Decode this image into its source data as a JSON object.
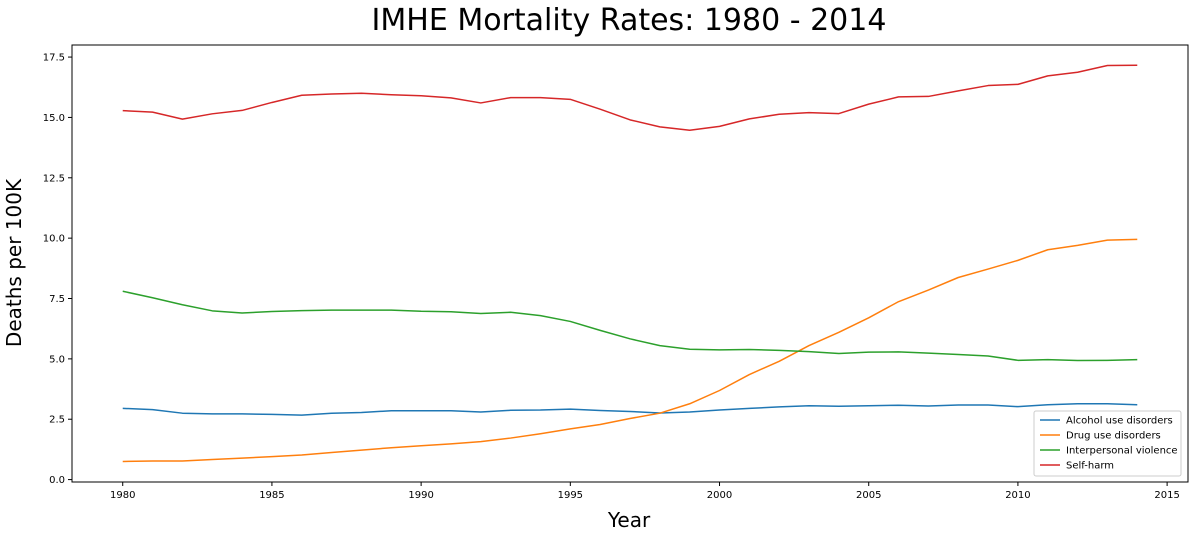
{
  "chart_data": {
    "type": "line",
    "title": "IMHE Mortality Rates: 1980 - 2014",
    "xlabel": "Year",
    "ylabel": "Deaths per 100K",
    "xlim": [
      1978.3,
      2015.7
    ],
    "ylim": [
      -0.1,
      18.0
    ],
    "x_ticks": [
      1980,
      1985,
      1990,
      1995,
      2000,
      2005,
      2010,
      2015
    ],
    "x_tick_labels": [
      "1980",
      "1985",
      "1990",
      "1995",
      "2000",
      "2005",
      "2010",
      "2015"
    ],
    "y_ticks": [
      0.0,
      2.5,
      5.0,
      7.5,
      10.0,
      12.5,
      15.0,
      17.5
    ],
    "y_tick_labels": [
      "0.0",
      "2.5",
      "5.0",
      "7.5",
      "10.0",
      "12.5",
      "15.0",
      "17.5"
    ],
    "grid": false,
    "legend_position": "lower-right",
    "x": [
      1980,
      1981,
      1982,
      1983,
      1984,
      1985,
      1986,
      1987,
      1988,
      1989,
      1990,
      1991,
      1992,
      1993,
      1994,
      1995,
      1996,
      1997,
      1998,
      1999,
      2000,
      2001,
      2002,
      2003,
      2004,
      2005,
      2006,
      2007,
      2008,
      2009,
      2010,
      2011,
      2012,
      2013,
      2014
    ],
    "series": [
      {
        "name": "Alcohol use disorders",
        "color": "#1f77b4",
        "values": [
          2.95,
          2.9,
          2.75,
          2.72,
          2.72,
          2.7,
          2.67,
          2.75,
          2.78,
          2.85,
          2.85,
          2.85,
          2.8,
          2.87,
          2.88,
          2.92,
          2.86,
          2.82,
          2.76,
          2.8,
          2.88,
          2.95,
          3.01,
          3.06,
          3.04,
          3.06,
          3.08,
          3.05,
          3.09,
          3.09,
          3.02,
          3.1,
          3.14,
          3.14,
          3.1
        ]
      },
      {
        "name": "Drug use disorders",
        "color": "#ff7f0e",
        "values": [
          0.75,
          0.77,
          0.77,
          0.83,
          0.89,
          0.95,
          1.02,
          1.12,
          1.22,
          1.32,
          1.4,
          1.48,
          1.57,
          1.72,
          1.9,
          2.1,
          2.28,
          2.53,
          2.75,
          3.14,
          3.69,
          4.35,
          4.9,
          5.55,
          6.1,
          6.7,
          7.37,
          7.85,
          8.37,
          8.72,
          9.08,
          9.52,
          9.7,
          9.92,
          9.95
        ]
      },
      {
        "name": "Interpersonal violence",
        "color": "#2ca02c",
        "values": [
          7.8,
          7.53,
          7.24,
          6.99,
          6.9,
          6.96,
          7.0,
          7.02,
          7.02,
          7.02,
          6.97,
          6.95,
          6.88,
          6.93,
          6.79,
          6.55,
          6.18,
          5.83,
          5.55,
          5.4,
          5.37,
          5.39,
          5.35,
          5.3,
          5.22,
          5.28,
          5.29,
          5.24,
          5.18,
          5.12,
          4.94,
          4.97,
          4.93,
          4.94,
          4.97
        ]
      },
      {
        "name": "Self-harm",
        "color": "#d62728",
        "values": [
          15.28,
          15.22,
          14.93,
          15.15,
          15.29,
          15.62,
          15.92,
          15.97,
          16.0,
          15.94,
          15.9,
          15.81,
          15.6,
          15.82,
          15.82,
          15.75,
          15.34,
          14.9,
          14.61,
          14.47,
          14.63,
          14.94,
          15.13,
          15.2,
          15.16,
          15.55,
          15.85,
          15.87,
          16.1,
          16.32,
          16.37,
          16.72,
          16.87,
          17.15,
          17.16
        ]
      }
    ]
  }
}
